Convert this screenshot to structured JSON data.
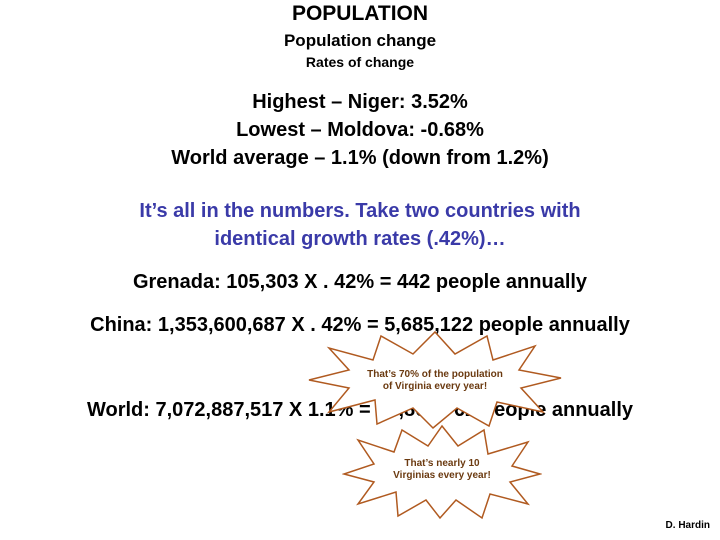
{
  "title": "POPULATION",
  "subtitle": "Population change",
  "subheading": "Rates of change",
  "stats": [
    "Highest – Niger: 3.52%",
    "Lowest – Moldova: -0.68%",
    "World average – 1.1% (down from 1.2%)"
  ],
  "intro": [
    "It’s all in the numbers.  Take two countries with",
    "identical growth rates (.42%)…"
  ],
  "examples": {
    "grenada": "Grenada:  105,303 X . 42% = 442 people annually",
    "china": "China:  1,353,600,687 X . 42% = 5,685,122 people annually",
    "world": "World:  7,072,887,517 X 1.1% = 77,801,762 people annually"
  },
  "callouts": [
    {
      "line1": "That’s 70% of the population",
      "line2": "of Virginia every year!"
    },
    {
      "line1": "That’s nearly 10",
      "line2": "Virginias every year!"
    }
  ],
  "credit": "D. Hardin",
  "colors": {
    "text": "#000000",
    "intro": "#3a3aa8",
    "burst_fill": "#ffffff",
    "burst_stroke": "#b05a20",
    "callout_text": "#6b3a10"
  }
}
